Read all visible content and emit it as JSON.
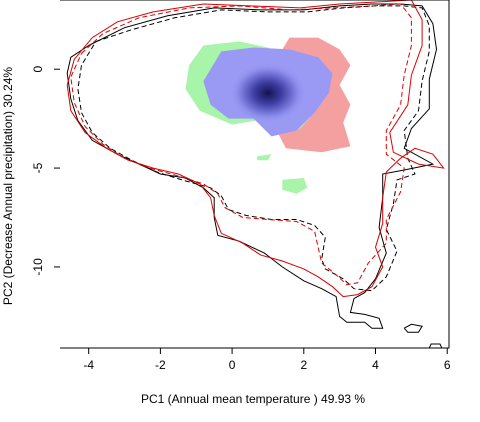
{
  "chart_data": {
    "type": "contour-density",
    "title": "",
    "xlabel": "PC1 (Annual mean temperature ) 49.93 %",
    "ylabel": "PC2 (Decrease Annual precipitation) 30.24%",
    "xlim": [
      -4.8,
      6.05
    ],
    "ylim": [
      -14.1,
      3.5
    ],
    "x_ticks": [
      -4,
      -2,
      0,
      2,
      4,
      6
    ],
    "y_ticks": [
      0,
      -5,
      -10
    ],
    "grid": false,
    "legend": "none",
    "colors": {
      "overlap": "#9a9af5",
      "density_core": "#1a1a60",
      "species_a_only": "#a8f4a8",
      "species_b_only": "#f5a0a0",
      "contour_a": "#000000",
      "contour_b": "#dd0000"
    },
    "density_peak": {
      "x": 1.0,
      "y": -1.2
    },
    "niche_regions": [
      {
        "name": "green",
        "color": "#a8f4a8",
        "points": [
          [
            -1.2,
            0.2
          ],
          [
            -0.8,
            1.2
          ],
          [
            0.2,
            1.4
          ],
          [
            1.0,
            1.1
          ],
          [
            1.6,
            0.6
          ],
          [
            1.6,
            -1.5
          ],
          [
            1.0,
            -2.5
          ],
          [
            0.0,
            -2.8
          ],
          [
            -0.9,
            -2.1
          ],
          [
            -1.3,
            -1.0
          ]
        ]
      },
      {
        "name": "green",
        "color": "#a8f4a8",
        "points": [
          [
            2.2,
            -2.1
          ],
          [
            2.4,
            -2.0
          ],
          [
            2.7,
            -2.3
          ],
          [
            2.6,
            -3.6
          ],
          [
            2.0,
            -3.9
          ],
          [
            1.5,
            -3.6
          ],
          [
            1.4,
            -2.8
          ]
        ]
      },
      {
        "name": "green",
        "color": "#a8f4a8",
        "points": [
          [
            1.4,
            -5.6
          ],
          [
            2.0,
            -5.5
          ],
          [
            2.1,
            -6.0
          ],
          [
            1.8,
            -6.3
          ],
          [
            1.4,
            -6.1
          ]
        ]
      },
      {
        "name": "green",
        "color": "#a8f4a8",
        "points": [
          [
            0.7,
            -4.4
          ],
          [
            1.1,
            -4.3
          ],
          [
            1.0,
            -4.6
          ],
          [
            0.7,
            -4.6
          ]
        ]
      },
      {
        "name": "red",
        "color": "#f5a0a0",
        "points": [
          [
            1.6,
            1.6
          ],
          [
            2.4,
            1.6
          ],
          [
            3.0,
            1.0
          ],
          [
            3.3,
            0.2
          ],
          [
            3.0,
            -0.8
          ],
          [
            3.3,
            -1.8
          ],
          [
            3.1,
            -2.7
          ],
          [
            3.3,
            -3.9
          ],
          [
            2.5,
            -4.2
          ],
          [
            1.5,
            -4.0
          ],
          [
            1.3,
            -3.3
          ],
          [
            1.9,
            -3.0
          ],
          [
            2.2,
            -2.4
          ],
          [
            1.9,
            -1.4
          ],
          [
            2.3,
            -0.2
          ],
          [
            1.9,
            0.6
          ],
          [
            1.3,
            0.7
          ]
        ]
      },
      {
        "name": "blue",
        "color": "#9a9af5",
        "points": [
          [
            -0.3,
            0.9
          ],
          [
            0.6,
            1.1
          ],
          [
            1.6,
            1.0
          ],
          [
            2.4,
            0.6
          ],
          [
            2.8,
            -0.2
          ],
          [
            2.7,
            -1.2
          ],
          [
            2.3,
            -2.2
          ],
          [
            1.8,
            -3.1
          ],
          [
            1.1,
            -3.4
          ],
          [
            0.6,
            -2.5
          ],
          [
            -0.1,
            -2.5
          ],
          [
            -0.6,
            -1.8
          ],
          [
            -0.8,
            -0.6
          ]
        ]
      }
    ],
    "series": [
      {
        "color": "#000000",
        "dash": "solid",
        "points": [
          [
            -4.0,
            1.2
          ],
          [
            -3.0,
            2.1
          ],
          [
            -1.8,
            2.7
          ],
          [
            -0.5,
            3.1
          ],
          [
            0.8,
            3.0
          ],
          [
            2.0,
            3.0
          ],
          [
            3.0,
            3.2
          ],
          [
            3.9,
            3.3
          ],
          [
            4.7,
            3.3
          ],
          [
            5.3,
            3.2
          ],
          [
            5.6,
            2.3
          ],
          [
            5.7,
            1.0
          ],
          [
            5.5,
            -0.5
          ],
          [
            5.5,
            -2.0
          ],
          [
            5.0,
            -3.0
          ],
          [
            4.8,
            -4.0
          ],
          [
            5.6,
            -4.8
          ],
          [
            4.8,
            -5.1
          ],
          [
            4.2,
            -5.3
          ],
          [
            4.2,
            -6.5
          ],
          [
            4.1,
            -8.0
          ],
          [
            4.3,
            -9.3
          ],
          [
            4.0,
            -10.6
          ],
          [
            3.7,
            -11.3
          ],
          [
            3.4,
            -11.6
          ],
          [
            3.3,
            -12.3
          ],
          [
            3.7,
            -12.4
          ],
          [
            4.1,
            -12.6
          ],
          [
            4.2,
            -13.1
          ],
          [
            3.9,
            -13.1
          ],
          [
            3.7,
            -12.8
          ],
          [
            3.2,
            -12.8
          ],
          [
            3.0,
            -12.5
          ],
          [
            2.9,
            -11.5
          ],
          [
            2.5,
            -11.1
          ],
          [
            2.0,
            -10.7
          ],
          [
            1.4,
            -10.0
          ],
          [
            0.9,
            -9.3
          ],
          [
            0.2,
            -8.7
          ],
          [
            -0.4,
            -8.4
          ],
          [
            -0.5,
            -7.5
          ],
          [
            -0.5,
            -6.5
          ],
          [
            -0.8,
            -6.0
          ],
          [
            -1.3,
            -5.5
          ],
          [
            -2.0,
            -5.3
          ],
          [
            -2.6,
            -4.8
          ],
          [
            -3.2,
            -4.3
          ],
          [
            -3.9,
            -3.6
          ],
          [
            -4.3,
            -2.6
          ],
          [
            -4.5,
            -1.5
          ],
          [
            -4.6,
            -0.2
          ],
          [
            -4.5,
            0.6
          ],
          [
            -4.0,
            1.2
          ]
        ]
      },
      {
        "color": "#000000",
        "dash": "dashed",
        "points": [
          [
            -3.8,
            1.4
          ],
          [
            -2.8,
            2.0
          ],
          [
            -1.6,
            2.6
          ],
          [
            -0.3,
            3.0
          ],
          [
            1.0,
            2.9
          ],
          [
            2.1,
            2.9
          ],
          [
            3.1,
            3.1
          ],
          [
            4.0,
            3.2
          ],
          [
            4.8,
            3.2
          ],
          [
            5.3,
            3.1
          ],
          [
            5.5,
            2.2
          ],
          [
            5.5,
            0.9
          ],
          [
            5.3,
            -0.6
          ],
          [
            5.2,
            -2.1
          ],
          [
            4.8,
            -3.1
          ],
          [
            4.9,
            -4.5
          ],
          [
            5.1,
            -5.3
          ],
          [
            4.6,
            -5.6
          ],
          [
            4.5,
            -6.8
          ],
          [
            4.3,
            -8.1
          ],
          [
            4.6,
            -9.2
          ],
          [
            4.3,
            -10.5
          ],
          [
            3.9,
            -11.2
          ],
          [
            3.4,
            -11.1
          ],
          [
            3.1,
            -10.6
          ],
          [
            2.6,
            -10.1
          ],
          [
            2.5,
            -9.6
          ],
          [
            2.6,
            -8.5
          ],
          [
            2.3,
            -7.9
          ],
          [
            1.8,
            -7.6
          ],
          [
            1.1,
            -7.6
          ],
          [
            0.4,
            -7.4
          ],
          [
            -0.1,
            -7.1
          ],
          [
            -0.3,
            -6.4
          ],
          [
            -0.6,
            -6.0
          ],
          [
            -1.4,
            -5.6
          ],
          [
            -2.1,
            -5.2
          ],
          [
            -2.8,
            -4.6
          ],
          [
            -3.4,
            -4.0
          ],
          [
            -3.9,
            -3.2
          ],
          [
            -4.2,
            -2.2
          ],
          [
            -4.3,
            -1.0
          ],
          [
            -4.2,
            0.2
          ],
          [
            -3.8,
            1.4
          ]
        ]
      },
      {
        "color": "#dd0000",
        "dash": "solid",
        "points": [
          [
            -4.4,
            0.5
          ],
          [
            -3.9,
            1.6
          ],
          [
            -3.2,
            2.4
          ],
          [
            -2.2,
            2.9
          ],
          [
            -0.8,
            3.3
          ],
          [
            0.5,
            3.2
          ],
          [
            1.9,
            3.1
          ],
          [
            3.0,
            3.3
          ],
          [
            4.0,
            3.4
          ],
          [
            5.0,
            3.5
          ],
          [
            5.3,
            2.5
          ],
          [
            5.3,
            1.2
          ],
          [
            5.0,
            -0.3
          ],
          [
            4.9,
            -1.8
          ],
          [
            4.4,
            -3.2
          ],
          [
            4.5,
            -4.2
          ],
          [
            5.2,
            -4.8
          ],
          [
            5.9,
            -5.0
          ],
          [
            5.6,
            -4.3
          ],
          [
            5.1,
            -4.0
          ],
          [
            4.7,
            -4.5
          ],
          [
            4.3,
            -5.2
          ],
          [
            4.2,
            -6.5
          ],
          [
            4.2,
            -7.8
          ],
          [
            4.0,
            -9.0
          ],
          [
            4.2,
            -10.0
          ],
          [
            3.9,
            -11.0
          ],
          [
            3.5,
            -11.4
          ],
          [
            3.1,
            -11.5
          ],
          [
            2.8,
            -11.0
          ],
          [
            2.4,
            -10.5
          ],
          [
            2.0,
            -10.1
          ],
          [
            1.4,
            -9.7
          ],
          [
            0.8,
            -9.4
          ],
          [
            0.3,
            -8.8
          ],
          [
            -0.3,
            -8.3
          ],
          [
            -0.5,
            -7.4
          ],
          [
            -0.6,
            -6.5
          ],
          [
            -0.9,
            -5.8
          ],
          [
            -1.5,
            -5.3
          ],
          [
            -2.2,
            -5.0
          ],
          [
            -2.9,
            -4.6
          ],
          [
            -3.5,
            -4.0
          ],
          [
            -4.1,
            -3.2
          ],
          [
            -4.5,
            -2.1
          ],
          [
            -4.6,
            -0.8
          ],
          [
            -4.4,
            0.5
          ]
        ]
      },
      {
        "color": "#dd0000",
        "dash": "dashed",
        "points": [
          [
            -4.2,
            0.8
          ],
          [
            -3.6,
            1.8
          ],
          [
            -2.6,
            2.6
          ],
          [
            -1.2,
            3.1
          ],
          [
            0.2,
            3.2
          ],
          [
            1.6,
            3.0
          ],
          [
            2.8,
            3.1
          ],
          [
            3.9,
            3.2
          ],
          [
            4.7,
            3.3
          ],
          [
            5.0,
            2.6
          ],
          [
            5.0,
            1.2
          ],
          [
            4.8,
            -0.3
          ],
          [
            4.7,
            -1.8
          ],
          [
            4.3,
            -3.1
          ],
          [
            4.3,
            -4.3
          ],
          [
            4.8,
            -5.0
          ],
          [
            4.7,
            -6.2
          ],
          [
            4.3,
            -7.6
          ],
          [
            4.3,
            -8.8
          ],
          [
            3.8,
            -9.8
          ],
          [
            3.5,
            -10.8
          ],
          [
            3.2,
            -10.9
          ],
          [
            2.9,
            -10.4
          ],
          [
            2.5,
            -9.8
          ],
          [
            2.4,
            -9.0
          ],
          [
            2.3,
            -8.2
          ],
          [
            1.8,
            -7.7
          ],
          [
            1.0,
            -7.6
          ],
          [
            0.3,
            -7.5
          ],
          [
            -0.2,
            -7.0
          ],
          [
            -0.4,
            -6.3
          ],
          [
            -0.8,
            -5.8
          ],
          [
            -1.5,
            -5.4
          ],
          [
            -2.3,
            -5.0
          ],
          [
            -3.0,
            -4.5
          ],
          [
            -3.6,
            -3.8
          ],
          [
            -4.1,
            -2.9
          ],
          [
            -4.4,
            -1.7
          ],
          [
            -4.5,
            -0.4
          ],
          [
            -4.2,
            0.8
          ]
        ]
      },
      {
        "color": "#000000",
        "dash": "solid",
        "points": [
          [
            4.8,
            -13.1
          ],
          [
            5.0,
            -12.9
          ],
          [
            5.3,
            -13.0
          ],
          [
            5.2,
            -13.3
          ],
          [
            4.9,
            -13.3
          ],
          [
            4.8,
            -13.1
          ]
        ]
      },
      {
        "color": "#000000",
        "dash": "solid",
        "points": [
          [
            5.5,
            -14.1
          ],
          [
            5.55,
            -13.9
          ],
          [
            5.8,
            -13.9
          ],
          [
            5.85,
            -14.1
          ]
        ]
      }
    ]
  }
}
